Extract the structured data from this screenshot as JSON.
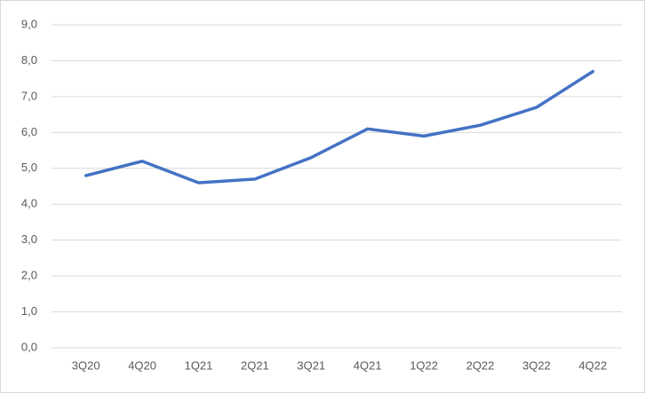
{
  "chart_data": {
    "type": "line",
    "categories": [
      "3Q20",
      "4Q20",
      "1Q21",
      "2Q21",
      "3Q21",
      "4Q21",
      "1Q22",
      "2Q22",
      "3Q22",
      "4Q22"
    ],
    "values": [
      4.8,
      5.2,
      4.6,
      4.7,
      5.3,
      6.1,
      5.9,
      6.2,
      6.7,
      7.7
    ],
    "color": "#4472c4",
    "ylim": [
      0,
      9
    ],
    "yticks": [
      {
        "value": 0,
        "label": "0,0"
      },
      {
        "value": 1,
        "label": "1,0"
      },
      {
        "value": 2,
        "label": "2,0"
      },
      {
        "value": 3,
        "label": "3,0"
      },
      {
        "value": 4,
        "label": "4,0"
      },
      {
        "value": 5,
        "label": "5,0"
      },
      {
        "value": 6,
        "label": "6,0"
      },
      {
        "value": 7,
        "label": "7,0"
      },
      {
        "value": 8,
        "label": "8,0"
      },
      {
        "value": 9,
        "label": "9,0"
      }
    ],
    "grid": true
  }
}
